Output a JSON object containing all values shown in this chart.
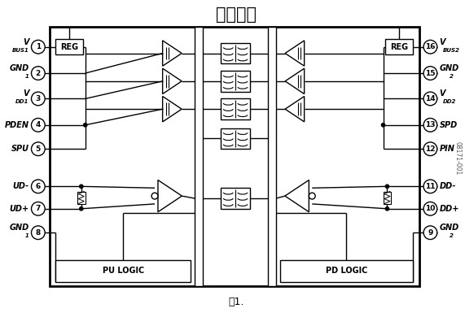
{
  "title": "功能框图",
  "subtitle": "图1.",
  "watermark": "08171-001",
  "bg_color": "#ffffff",
  "line_color": "#000000",
  "fig_width": 5.71,
  "fig_height": 3.9,
  "dpi": 100,
  "left_pin_labels": [
    "V_BUS1",
    "GND_1",
    "V_DD1",
    "PDEN",
    "SPU",
    "UD-",
    "UD+",
    "GND_1"
  ],
  "left_pin_nums": [
    1,
    2,
    3,
    4,
    5,
    6,
    7,
    8
  ],
  "right_pin_labels": [
    "V_BUS2",
    "GND_2",
    "V_DD2",
    "SPD",
    "PIN",
    "DD-",
    "DD+",
    "GND_2"
  ],
  "right_pin_nums": [
    16,
    15,
    14,
    13,
    12,
    11,
    10,
    9
  ]
}
